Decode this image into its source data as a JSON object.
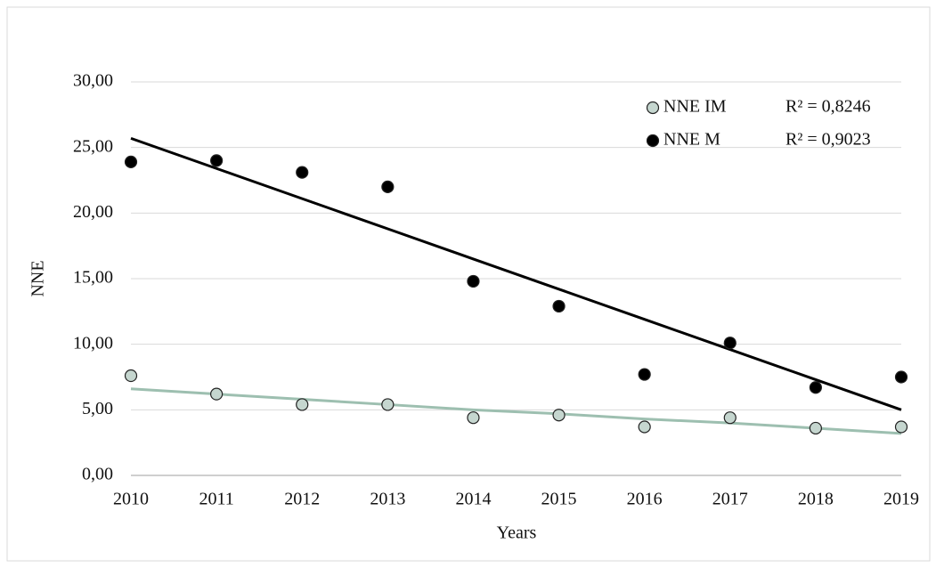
{
  "chart_data": {
    "type": "scatter",
    "x_label": "Years",
    "y_label": "NNE",
    "x": [
      2010,
      2011,
      2012,
      2013,
      2014,
      2015,
      2016,
      2017,
      2018,
      2019
    ],
    "series": [
      {
        "name": "NNE IM",
        "color": "#c5d6cf",
        "values": [
          7.6,
          6.2,
          5.4,
          5.4,
          4.4,
          4.6,
          3.7,
          4.4,
          3.6,
          3.7
        ]
      },
      {
        "name": "NNE M",
        "color": "#000000",
        "values": [
          23.9,
          24.0,
          23.1,
          22.0,
          14.8,
          12.9,
          7.7,
          10.1,
          6.7,
          7.5
        ]
      }
    ],
    "trendlines": [
      {
        "label": "R² = 0,8246",
        "color": "#9dbfb0",
        "values": [
          6.6,
          6.2,
          5.8,
          5.4,
          5.0,
          4.7,
          4.3,
          4.0,
          3.6,
          3.2
        ]
      },
      {
        "label": "R² = 0,9023",
        "color": "#000000",
        "values": [
          25.7,
          23.4,
          21.1,
          18.8,
          16.5,
          14.2,
          11.9,
          9.6,
          7.3,
          5.0
        ]
      }
    ],
    "xlim": [
      2010,
      2019
    ],
    "xticks": [
      2010,
      2011,
      2012,
      2013,
      2014,
      2015,
      2016,
      2017,
      2018,
      2019
    ],
    "ylim": [
      0,
      30
    ],
    "yticks": [
      {
        "value": 0,
        "label": "0,00"
      },
      {
        "value": 5,
        "label": "5,00"
      },
      {
        "value": 10,
        "label": "10,00"
      },
      {
        "value": 15,
        "label": "15,00"
      },
      {
        "value": 20,
        "label": "20,00"
      },
      {
        "value": 25,
        "label": "25,00"
      },
      {
        "value": 30,
        "label": "30,00"
      }
    ],
    "grid": true,
    "legend": "top-right"
  }
}
